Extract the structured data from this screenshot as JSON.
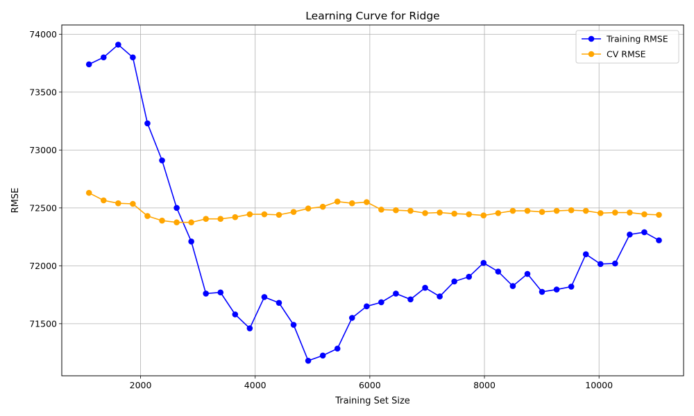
{
  "chart_data": {
    "type": "line",
    "title": "Learning Curve for Ridge",
    "xlabel": "Training Set Size",
    "ylabel": "RMSE",
    "xlim": [
      625,
      11475
    ],
    "ylim": [
      71050,
      74080
    ],
    "xticks": [
      2000,
      4000,
      6000,
      8000,
      10000
    ],
    "yticks": [
      71500,
      72000,
      72500,
      73000,
      73500,
      74000
    ],
    "grid": true,
    "legend_position": "top-right",
    "x": [
      1100,
      1355,
      1610,
      1865,
      2120,
      2375,
      2630,
      2885,
      3140,
      3395,
      3650,
      3905,
      4160,
      4415,
      4670,
      4925,
      5180,
      5435,
      5690,
      5945,
      6200,
      6455,
      6710,
      6965,
      7220,
      7475,
      7730,
      7985,
      8240,
      8495,
      8750,
      9005,
      9260,
      9515,
      9770,
      10025,
      10280,
      10535,
      10790,
      11045
    ],
    "series": [
      {
        "name": "Training RMSE",
        "color": "#0000ff",
        "values": [
          73740,
          73800,
          73910,
          73800,
          73230,
          72910,
          72500,
          72210,
          71760,
          71770,
          71580,
          71460,
          71730,
          71680,
          71490,
          71180,
          71225,
          71285,
          71550,
          71650,
          71685,
          71760,
          71710,
          71810,
          71735,
          71865,
          71905,
          72025,
          71950,
          71825,
          71930,
          71775,
          71795,
          71820,
          72100,
          72015,
          72020,
          72270,
          72290,
          72220
        ]
      },
      {
        "name": "CV RMSE",
        "color": "#ffa500",
        "values": [
          72630,
          72565,
          72540,
          72535,
          72430,
          72390,
          72375,
          72375,
          72405,
          72405,
          72420,
          72445,
          72445,
          72440,
          72465,
          72495,
          72510,
          72555,
          72540,
          72550,
          72485,
          72480,
          72475,
          72455,
          72460,
          72450,
          72445,
          72435,
          72455,
          72475,
          72475,
          72465,
          72475,
          72480,
          72475,
          72455,
          72460,
          72460,
          72445,
          72440
        ]
      }
    ]
  }
}
